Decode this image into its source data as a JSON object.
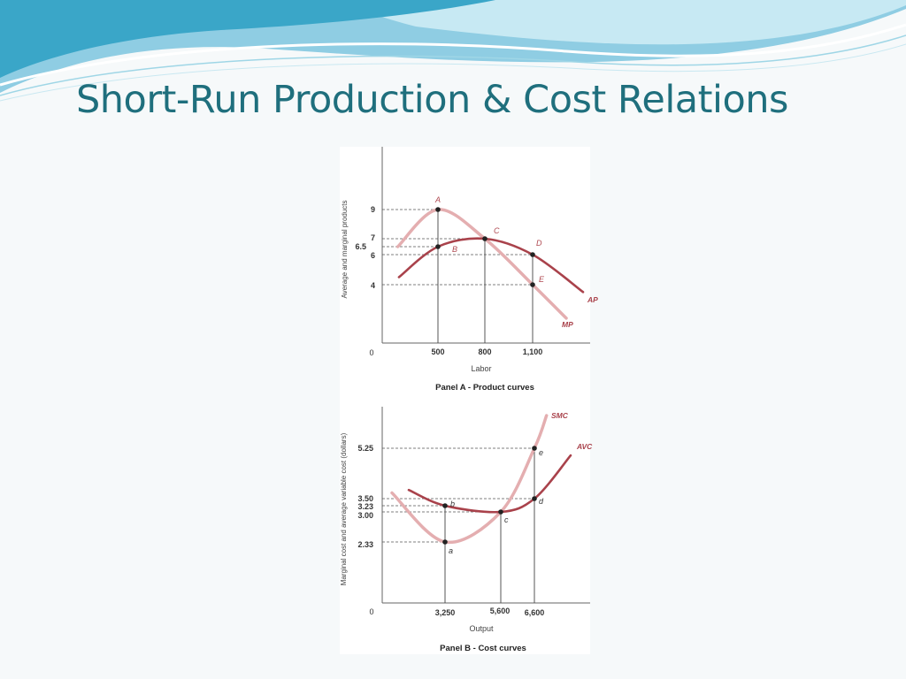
{
  "slide": {
    "title": "Short-Run Production & Cost Relations",
    "colors": {
      "title": "#1f6f7d",
      "banner_dark": "#3aa6c8",
      "banner_light": "#bfe3ef"
    }
  },
  "chart_data": [
    {
      "type": "line",
      "title": "Panel A - Product curves",
      "xlabel": "Labor",
      "ylabel": "Average and marginal products",
      "origin_label": "0",
      "x_ticks": [
        "500",
        "800",
        "1,100"
      ],
      "y_ticks": [
        "9",
        "7",
        "6.5",
        "6",
        "4"
      ],
      "series": [
        {
          "name": "MP",
          "color": "#e4aeb0",
          "points": [
            [
              140,
              6.5
            ],
            [
              500,
              9
            ],
            [
              800,
              7
            ],
            [
              1100,
              4
            ],
            [
              1300,
              1.7
            ]
          ]
        },
        {
          "name": "AP",
          "color": "#a9424b",
          "points": [
            [
              150,
              4.5
            ],
            [
              500,
              6.5
            ],
            [
              800,
              7
            ],
            [
              1100,
              6
            ],
            [
              1400,
              3.5
            ]
          ]
        }
      ],
      "labeled_points": [
        {
          "label": "A",
          "x": 500,
          "y": 9
        },
        {
          "label": "B",
          "x": 500,
          "y": 6.5
        },
        {
          "label": "C",
          "x": 800,
          "y": 7
        },
        {
          "label": "D",
          "x": 1100,
          "y": 6
        },
        {
          "label": "E",
          "x": 1100,
          "y": 4
        }
      ]
    },
    {
      "type": "line",
      "title": "Panel B - Cost curves",
      "xlabel": "Output",
      "ylabel": "Marginal cost and average variable cost (dollars)",
      "origin_label": "0",
      "x_ticks": [
        "3,250",
        "5,600",
        "6,600"
      ],
      "y_ticks": [
        "5.25",
        "3.50",
        "3.23",
        "3.00",
        "2.33"
      ],
      "series": [
        {
          "name": "SMC",
          "color": "#e4aeb0",
          "points": [
            [
              1300,
              3.7
            ],
            [
              3250,
              2.33
            ],
            [
              5600,
              3.0
            ],
            [
              6600,
              5.25
            ],
            [
              7000,
              6.5
            ]
          ]
        },
        {
          "name": "AVC",
          "color": "#a9424b",
          "points": [
            [
              1500,
              3.8
            ],
            [
              3250,
              3.23
            ],
            [
              5600,
              3.0
            ],
            [
              6600,
              3.5
            ],
            [
              7800,
              5.0
            ]
          ]
        }
      ],
      "labeled_points": [
        {
          "label": "a",
          "x": 3250,
          "y": 2.33
        },
        {
          "label": "b",
          "x": 3250,
          "y": 3.23
        },
        {
          "label": "c",
          "x": 5600,
          "y": 3.0
        },
        {
          "label": "d",
          "x": 6600,
          "y": 3.5
        },
        {
          "label": "e",
          "x": 6600,
          "y": 5.25
        }
      ]
    }
  ]
}
